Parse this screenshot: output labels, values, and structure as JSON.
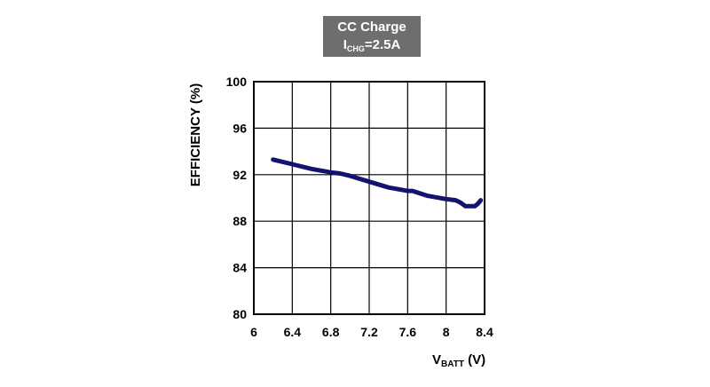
{
  "chart_data": {
    "type": "line",
    "title": "CC Charge",
    "subtitle_main": "I",
    "subtitle_sub": "CHG",
    "subtitle_rest": "=2.5A",
    "xlabel_main": "V",
    "xlabel_sub": "BATT",
    "xlabel_rest": " (V)",
    "ylabel": "EFFICIENCY (%)",
    "xlim": [
      6,
      8.4
    ],
    "ylim": [
      80,
      100
    ],
    "xticks": [
      "6",
      "6.4",
      "6.8",
      "7.2",
      "7.6",
      "8",
      "8.4"
    ],
    "yticks": [
      "80",
      "84",
      "88",
      "92",
      "96",
      "100"
    ],
    "grid": true,
    "line_color": "#14146e",
    "series": [
      {
        "x": [
          6.2,
          6.4,
          6.6,
          6.8,
          6.9,
          7.0,
          7.2,
          7.4,
          7.6,
          7.65,
          7.8,
          8.0,
          8.1,
          8.15,
          8.2,
          8.25,
          8.3,
          8.33,
          8.36
        ],
        "y": [
          93.3,
          92.9,
          92.5,
          92.2,
          92.1,
          91.9,
          91.4,
          90.9,
          90.6,
          90.6,
          90.2,
          89.9,
          89.8,
          89.6,
          89.3,
          89.3,
          89.3,
          89.5,
          89.8
        ]
      }
    ]
  }
}
